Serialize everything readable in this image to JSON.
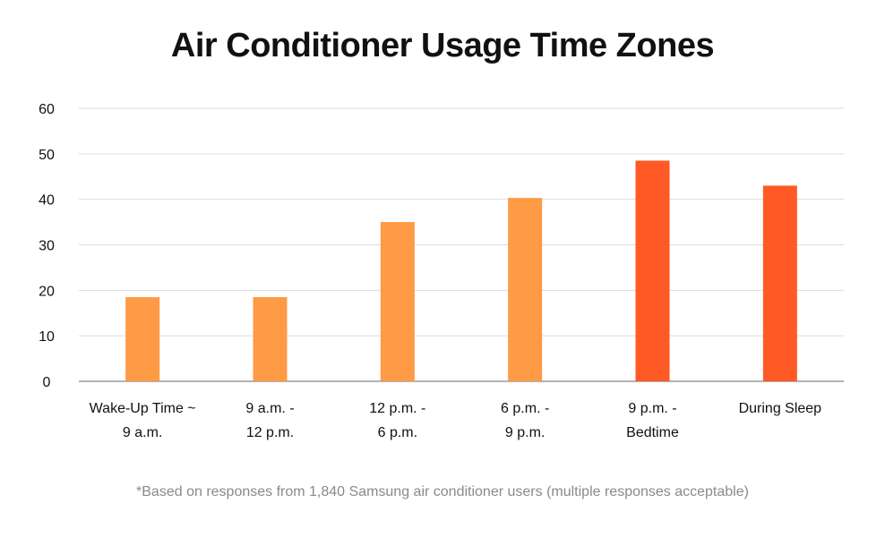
{
  "chart_data": {
    "type": "bar",
    "title": "Air Conditioner Usage Time Zones",
    "categories": [
      [
        "Wake-Up Time ~",
        "9 a.m."
      ],
      [
        "9 a.m. -",
        "12 p.m."
      ],
      [
        "12 p.m. -",
        "6 p.m."
      ],
      [
        "6 p.m. -",
        "9 p.m."
      ],
      [
        "9 p.m. -",
        "Bedtime"
      ],
      [
        "During Sleep"
      ]
    ],
    "values": [
      18.5,
      18.5,
      35,
      40.3,
      48.5,
      43
    ],
    "bar_colors": [
      "#ff9a45",
      "#ff9a45",
      "#ff9a45",
      "#ff9a45",
      "#ff5a26",
      "#ff5a26"
    ],
    "ylim": [
      0,
      60
    ],
    "yticks": [
      0,
      10,
      20,
      30,
      40,
      50,
      60
    ],
    "grid": true,
    "xlabel": "",
    "ylabel": "",
    "footnote": "*Based on responses from 1,840 Samsung air conditioner users (multiple responses acceptable)"
  }
}
